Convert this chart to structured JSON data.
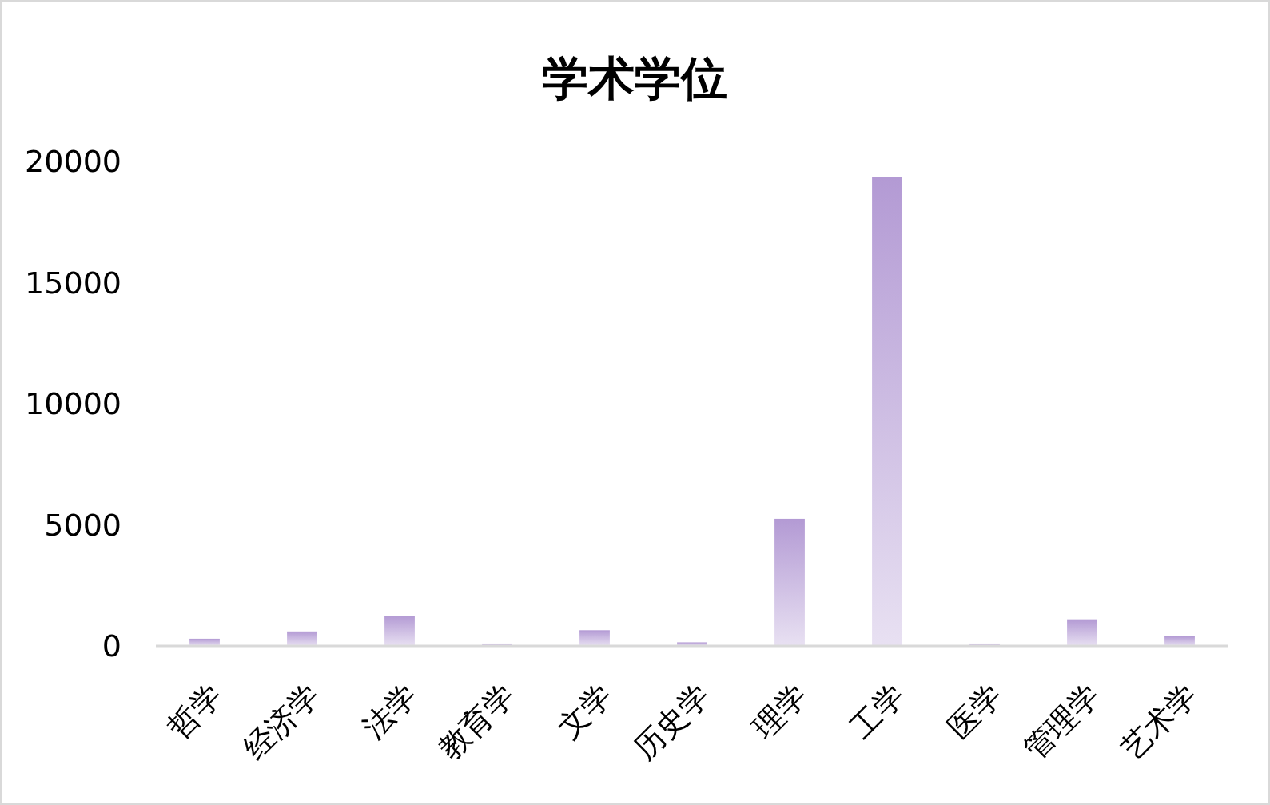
{
  "chart_data": {
    "type": "bar",
    "title": "学术学位",
    "categories": [
      "哲学",
      "经济学",
      "法学",
      "教育学",
      "文学",
      "历史学",
      "理学",
      "工学",
      "医学",
      "管理学",
      "艺术学"
    ],
    "values": [
      300,
      600,
      1250,
      100,
      650,
      150,
      5250,
      19350,
      100,
      1100,
      400
    ],
    "color": "#b39ad4",
    "ylim": [
      0,
      20000
    ],
    "yticks": [
      0,
      5000,
      10000,
      15000,
      20000
    ]
  }
}
